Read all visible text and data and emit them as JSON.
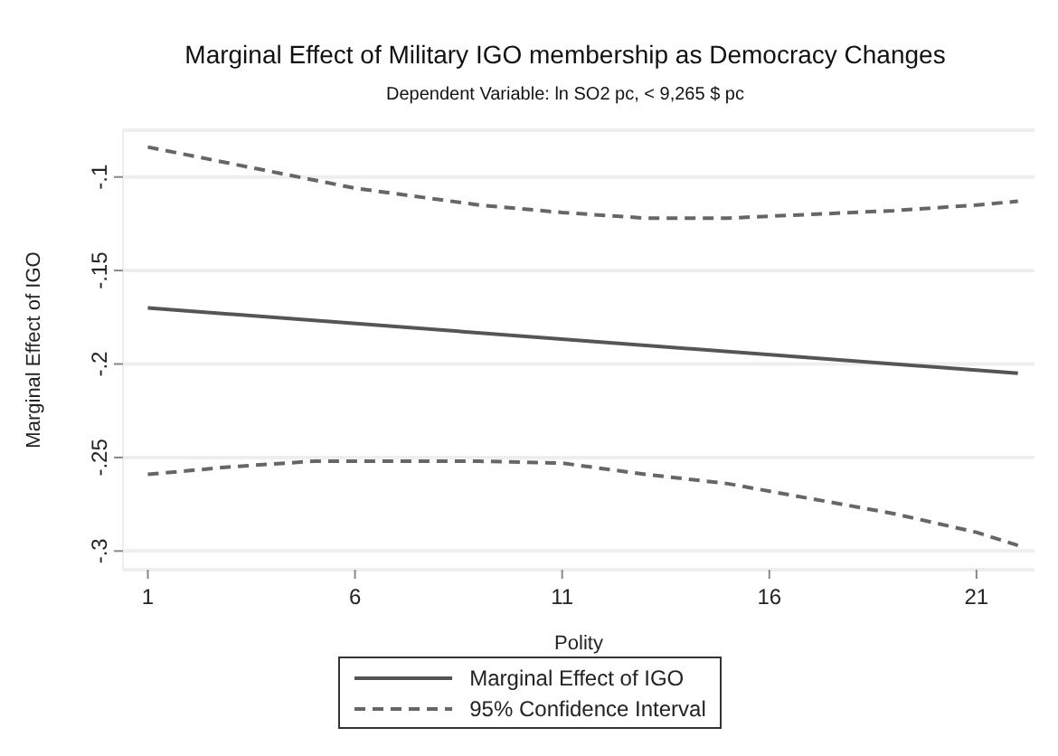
{
  "chart_data": {
    "type": "line",
    "title": "Marginal Effect of Military IGO membership as Democracy Changes",
    "subtitle": "Dependent Variable: ln SO2 pc, < 9,265 $ pc",
    "xlabel": "Polity",
    "ylabel": "Marginal Effect of IGO",
    "series": [
      {
        "name": "Marginal Effect of IGO",
        "color": "#555555",
        "line_style": "solid",
        "x": [
          1,
          22
        ],
        "values": [
          -0.17,
          -0.205
        ]
      },
      {
        "name": "95% Confidence Interval",
        "color": "#666666",
        "line_style": "dashed",
        "x": [
          1,
          6,
          9,
          11,
          13,
          15,
          17,
          19,
          21,
          22
        ],
        "values": [
          -0.084,
          -0.106,
          -0.115,
          -0.119,
          -0.122,
          -0.122,
          -0.12,
          -0.118,
          -0.115,
          -0.113
        ]
      },
      {
        "color": "#666666",
        "line_style": "dashed",
        "x": [
          1,
          3,
          5,
          9,
          11,
          13,
          15,
          17,
          19,
          21,
          22
        ],
        "values": [
          -0.259,
          -0.255,
          -0.252,
          -0.252,
          -0.253,
          -0.259,
          -0.264,
          -0.272,
          -0.28,
          -0.29,
          -0.297
        ]
      }
    ],
    "xlim": [
      0.4,
      22.4
    ],
    "xticks": [
      1,
      6,
      11,
      16,
      21
    ],
    "ylim": [
      -0.31,
      -0.075
    ],
    "yticks": [
      {
        "value": -0.3,
        "label": "-.3"
      },
      {
        "value": -0.25,
        "label": "-.25"
      },
      {
        "value": -0.2,
        "label": "-.2"
      },
      {
        "value": -0.15,
        "label": "-.15"
      },
      {
        "value": -0.1,
        "label": "-.1"
      }
    ],
    "grid": "y",
    "legend": "bottom",
    "marker": "none"
  }
}
